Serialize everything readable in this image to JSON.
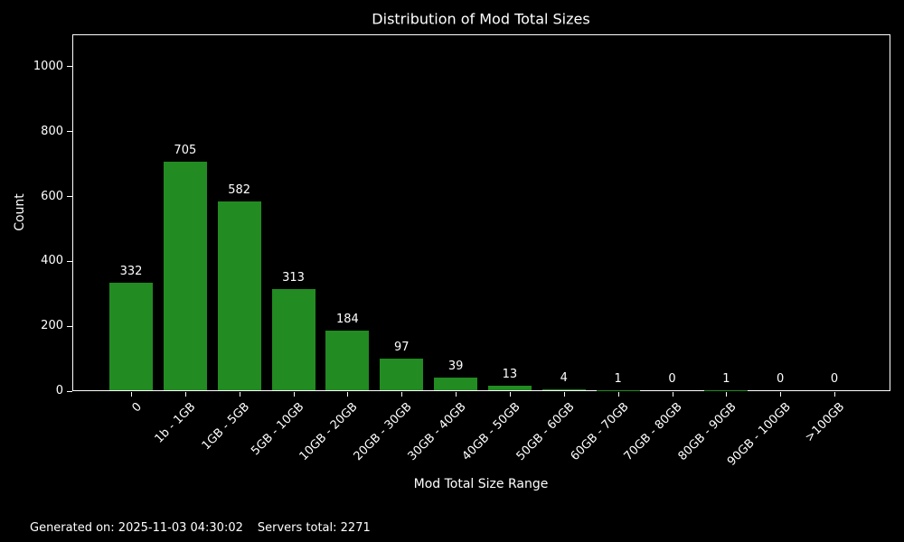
{
  "title": "Distribution of Mod Total Sizes",
  "footer": {
    "generated": "Generated on: 2025-11-03 04:30:02",
    "servers_total": "Servers total: 2271"
  },
  "chart_data": {
    "type": "bar",
    "title": "Distribution of Mod Total Sizes",
    "xlabel": "Mod Total Size Range",
    "ylabel": "Count",
    "categories": [
      "0",
      "1b - 1GB",
      "1GB - 5GB",
      "5GB - 10GB",
      "10GB - 20GB",
      "20GB - 30GB",
      "30GB - 40GB",
      "40GB - 50GB",
      "50GB - 60GB",
      "60GB - 70GB",
      "70GB - 80GB",
      "80GB - 90GB",
      "90GB - 100GB",
      ">100GB"
    ],
    "values": [
      332,
      705,
      582,
      313,
      184,
      97,
      39,
      13,
      4,
      1,
      0,
      1,
      0,
      0
    ],
    "yticks": [
      0,
      200,
      400,
      600,
      800,
      1000
    ],
    "ylim": [
      0,
      1100
    ],
    "grid": false,
    "legend_position": "none",
    "bar_color": "#228B22",
    "background_color": "#000000",
    "text_color": "#ffffff"
  }
}
